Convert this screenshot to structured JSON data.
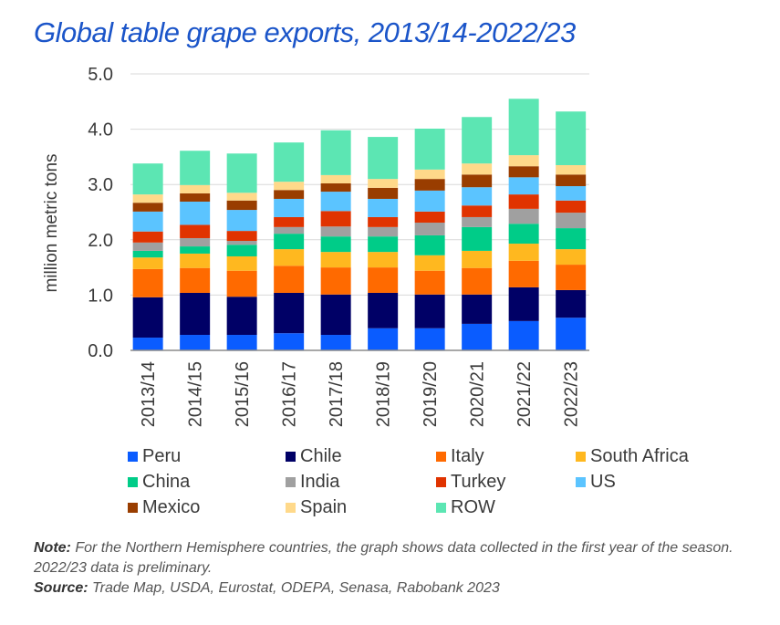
{
  "title": "Global table grape exports, 2013/14-2022/23",
  "note": {
    "note_label": "Note:",
    "note_text": " For the Northern Hemisphere countries, the graph shows data collected in the first year of the season. 2022/23 data is preliminary.",
    "source_label": "Source:",
    "source_text": " Trade Map, USDA, Eurostat, ODEPA, Senasa, Rabobank 2023"
  },
  "chart_data": {
    "type": "bar",
    "stacked": true,
    "title": "Global table grape exports, 2013/14-2022/23",
    "xlabel": "",
    "ylabel": "million metric tons",
    "ylim": [
      0,
      5
    ],
    "yticks": [
      "0.0",
      "1.0",
      "2.0",
      "3.0",
      "4.0",
      "5.0"
    ],
    "grid": true,
    "legend_position": "bottom",
    "categories": [
      "2013/14",
      "2014/15",
      "2015/16",
      "2016/17",
      "2017/18",
      "2018/19",
      "2019/20",
      "2020/21",
      "2021/22",
      "2022/23"
    ],
    "series": [
      {
        "name": "Peru",
        "color": "#0a5cff",
        "values": [
          0.23,
          0.28,
          0.28,
          0.31,
          0.28,
          0.4,
          0.4,
          0.48,
          0.53,
          0.59
        ]
      },
      {
        "name": "Chile",
        "color": "#000066",
        "values": [
          0.73,
          0.76,
          0.69,
          0.73,
          0.73,
          0.64,
          0.61,
          0.53,
          0.61,
          0.5
        ]
      },
      {
        "name": "Italy",
        "color": "#ff6a00",
        "values": [
          0.51,
          0.45,
          0.47,
          0.49,
          0.49,
          0.46,
          0.43,
          0.48,
          0.48,
          0.46
        ]
      },
      {
        "name": "South Africa",
        "color": "#ffb81f",
        "values": [
          0.21,
          0.26,
          0.26,
          0.3,
          0.28,
          0.28,
          0.28,
          0.31,
          0.31,
          0.28
        ]
      },
      {
        "name": "China",
        "color": "#00cc88",
        "values": [
          0.12,
          0.13,
          0.21,
          0.28,
          0.28,
          0.28,
          0.36,
          0.43,
          0.36,
          0.38
        ]
      },
      {
        "name": "India",
        "color": "#a0a0a0",
        "values": [
          0.15,
          0.15,
          0.07,
          0.12,
          0.18,
          0.17,
          0.23,
          0.18,
          0.27,
          0.28
        ]
      },
      {
        "name": "Turkey",
        "color": "#e03300",
        "values": [
          0.2,
          0.24,
          0.18,
          0.18,
          0.28,
          0.18,
          0.2,
          0.21,
          0.26,
          0.22
        ]
      },
      {
        "name": "US",
        "color": "#5bc4ff",
        "values": [
          0.36,
          0.42,
          0.38,
          0.33,
          0.35,
          0.33,
          0.38,
          0.33,
          0.31,
          0.26
        ]
      },
      {
        "name": "Mexico",
        "color": "#993d00",
        "values": [
          0.16,
          0.15,
          0.17,
          0.16,
          0.15,
          0.2,
          0.21,
          0.23,
          0.2,
          0.21
        ]
      },
      {
        "name": "Spain",
        "color": "#ffd98a",
        "values": [
          0.15,
          0.15,
          0.14,
          0.15,
          0.15,
          0.16,
          0.17,
          0.2,
          0.2,
          0.17
        ]
      },
      {
        "name": "ROW",
        "color": "#5ce6b3",
        "values": [
          0.56,
          0.62,
          0.71,
          0.71,
          0.81,
          0.76,
          0.74,
          0.84,
          1.02,
          0.97
        ]
      }
    ]
  }
}
